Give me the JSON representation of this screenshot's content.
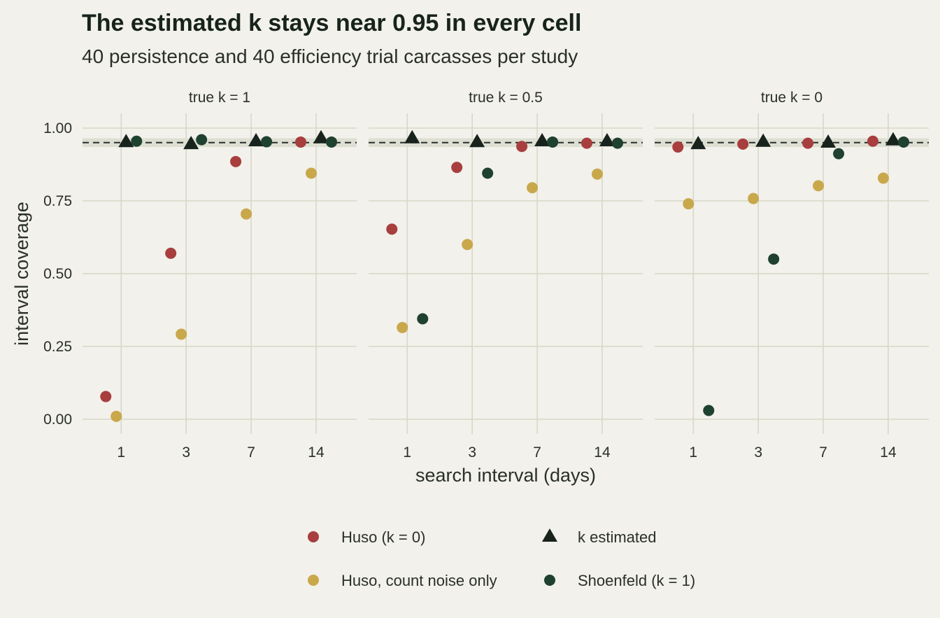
{
  "chart_data": {
    "type": "scatter",
    "title": "The estimated k stays near 0.95 in every cell",
    "subtitle": "40 persistence and 40 efficiency trial carcasses per study",
    "xlabel": "search interval (days)",
    "ylabel": "interval coverage",
    "ylim": [
      -0.05,
      1.05
    ],
    "y_ticks": [
      "0.00",
      "0.25",
      "0.50",
      "0.75",
      "1.00"
    ],
    "y_tick_values": [
      0,
      0.25,
      0.5,
      0.75,
      1.0
    ],
    "x_categories": [
      "1",
      "3",
      "7",
      "14"
    ],
    "reference_line": {
      "value": 0.95,
      "band": [
        0.935,
        0.965
      ],
      "style": "dashed"
    },
    "grid": true,
    "legend_position": "bottom",
    "panels": [
      {
        "label": "true k = 1",
        "series": [
          {
            "name": "Huso (k = 0)",
            "color": "#a83e3e",
            "marker": "circle",
            "values": [
              0.078,
              0.57,
              0.885,
              0.952
            ]
          },
          {
            "name": "Huso, count noise only",
            "color": "#c9a84c",
            "marker": "circle",
            "values": [
              0.01,
              0.292,
              0.705,
              0.845
            ]
          },
          {
            "name": "k estimated",
            "color": "#17231c",
            "marker": "triangle",
            "values": [
              0.952,
              0.945,
              0.955,
              0.965
            ]
          },
          {
            "name": "Shoenfeld (k = 1)",
            "color": "#1f4230",
            "marker": "circle",
            "values": [
              0.955,
              0.96,
              0.953,
              0.952
            ]
          }
        ]
      },
      {
        "label": "true k = 0.5",
        "series": [
          {
            "name": "Huso (k = 0)",
            "color": "#a83e3e",
            "marker": "circle",
            "values": [
              0.653,
              0.865,
              0.937,
              0.948
            ]
          },
          {
            "name": "Huso, count noise only",
            "color": "#c9a84c",
            "marker": "circle",
            "values": [
              0.315,
              0.6,
              0.795,
              0.842
            ]
          },
          {
            "name": "k estimated",
            "color": "#17231c",
            "marker": "triangle",
            "values": [
              0.965,
              0.952,
              0.955,
              0.955
            ]
          },
          {
            "name": "Shoenfeld (k = 1)",
            "color": "#1f4230",
            "marker": "circle",
            "values": [
              0.345,
              0.845,
              0.952,
              0.948
            ]
          }
        ]
      },
      {
        "label": "true k = 0",
        "series": [
          {
            "name": "Huso (k = 0)",
            "color": "#a83e3e",
            "marker": "circle",
            "values": [
              0.935,
              0.945,
              0.948,
              0.955
            ]
          },
          {
            "name": "Huso, count noise only",
            "color": "#c9a84c",
            "marker": "circle",
            "values": [
              0.74,
              0.758,
              0.802,
              0.828
            ]
          },
          {
            "name": "k estimated",
            "color": "#17231c",
            "marker": "triangle",
            "values": [
              0.945,
              0.953,
              0.95,
              0.958
            ]
          },
          {
            "name": "Shoenfeld (k = 1)",
            "color": "#1f4230",
            "marker": "circle",
            "values": [
              0.03,
              0.55,
              0.912,
              0.952
            ]
          }
        ]
      }
    ],
    "legend": [
      {
        "name": "Huso (k = 0)",
        "color": "#a83e3e",
        "marker": "circle"
      },
      {
        "name": "Huso, count noise only",
        "color": "#c9a84c",
        "marker": "circle"
      },
      {
        "name": "k estimated",
        "color": "#17231c",
        "marker": "triangle"
      },
      {
        "name": "Shoenfeld (k = 1)",
        "color": "#1f4230",
        "marker": "circle"
      }
    ]
  }
}
